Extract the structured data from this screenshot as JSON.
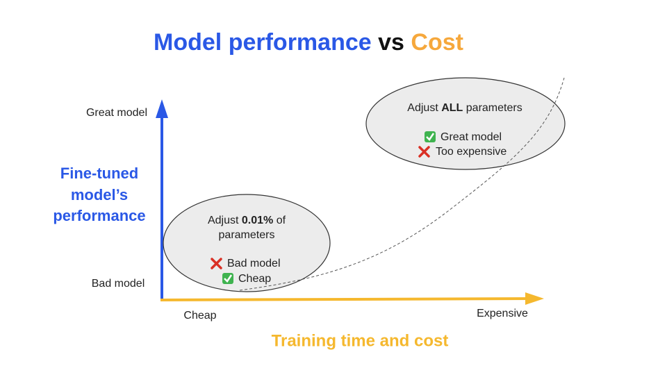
{
  "title": {
    "part1": "Model performance",
    "part2": "vs",
    "part3": "Cost"
  },
  "y_axis": {
    "label": [
      "Fine-tuned",
      "model’s",
      "performance"
    ],
    "top": "Great model",
    "bottom": "Bad model"
  },
  "x_axis": {
    "label": "Training time and cost",
    "left": "Cheap",
    "right": "Expensive"
  },
  "bubbles": [
    {
      "line1": [
        "Adjust",
        "0.01%",
        "of"
      ],
      "line2": "parameters",
      "items": [
        "Bad model",
        "Cheap"
      ]
    },
    {
      "line1": [
        "Adjust",
        "ALL",
        "parameters"
      ],
      "items": [
        "Great model",
        "Too expensive"
      ]
    }
  ]
}
